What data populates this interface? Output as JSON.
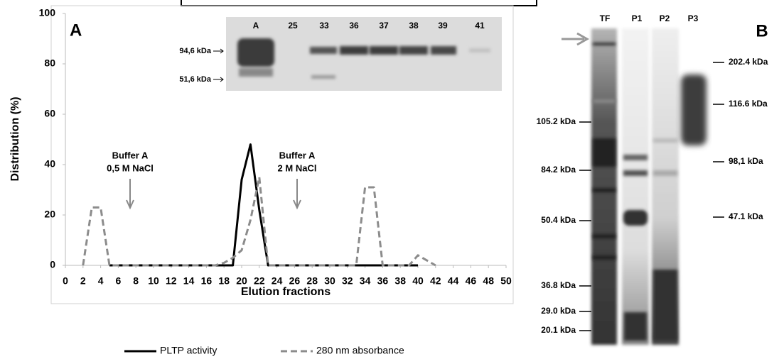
{
  "chart_data": {
    "type": "line",
    "panel_label": "A",
    "xlabel": "Elution fractions",
    "ylabel": "Distribution (%)",
    "x": [
      2,
      3,
      4,
      5,
      6,
      7,
      8,
      9,
      10,
      11,
      12,
      13,
      14,
      15,
      16,
      17,
      18,
      19,
      20,
      21,
      22,
      23,
      24,
      25,
      26,
      27,
      28,
      29,
      30,
      31,
      32,
      33,
      34,
      35,
      36,
      37,
      38,
      39,
      40,
      41,
      42
    ],
    "series": [
      {
        "name": "PLTP activity",
        "color": "#000000",
        "dashed": false,
        "values": [
          null,
          null,
          null,
          0,
          0,
          0,
          0,
          0,
          0,
          0,
          0,
          0,
          0,
          0,
          0,
          0,
          0,
          0,
          34,
          48,
          22,
          0,
          0,
          0,
          0,
          0,
          0,
          0,
          0,
          0,
          0,
          0,
          0,
          0,
          0,
          0,
          0,
          0,
          0,
          null,
          null
        ]
      },
      {
        "name": "280 nm absorbance",
        "color": "#8c8c8c",
        "dashed": true,
        "values": [
          0,
          23,
          23,
          0,
          0,
          0,
          0,
          0,
          0,
          0,
          0,
          0,
          0,
          0,
          0,
          0,
          1,
          3,
          6,
          18,
          35,
          0,
          0,
          0,
          0,
          0,
          0,
          0,
          0,
          0,
          0,
          0,
          31,
          31,
          0,
          0,
          0,
          0,
          4,
          2,
          0
        ]
      }
    ],
    "xlim": [
      0,
      50
    ],
    "xticks": [
      0,
      2,
      4,
      6,
      8,
      10,
      12,
      14,
      16,
      18,
      20,
      22,
      24,
      26,
      28,
      30,
      32,
      34,
      36,
      38,
      40,
      42,
      44,
      46,
      48,
      50
    ],
    "ylim": [
      0,
      100
    ],
    "yticks": [
      0,
      20,
      40,
      60,
      80,
      100
    ],
    "grid": false,
    "legend": "bottom",
    "annotations": [
      [
        "Buffer A",
        "0,5 M NaCl"
      ],
      [
        "Buffer A",
        "2 M NaCl"
      ]
    ]
  },
  "inset": {
    "lanes": [
      "A",
      "25",
      "33",
      "36",
      "37",
      "38",
      "39",
      "41"
    ],
    "markers": [
      "94,6 kDa",
      "51,6 kDa"
    ]
  },
  "panel_b": {
    "label": "B",
    "lanes": [
      "TF",
      "P1",
      "P2",
      "P3"
    ],
    "left_markers": [
      "105.2 kDa",
      "84.2 kDa",
      "50.4 kDa",
      "36.8 kDa",
      "29.0 kDa",
      "20.1 kDa"
    ],
    "right_markers": [
      "202.4 kDa",
      "116.6 kDa",
      "98,1 kDa",
      "47.1 kDa"
    ]
  }
}
